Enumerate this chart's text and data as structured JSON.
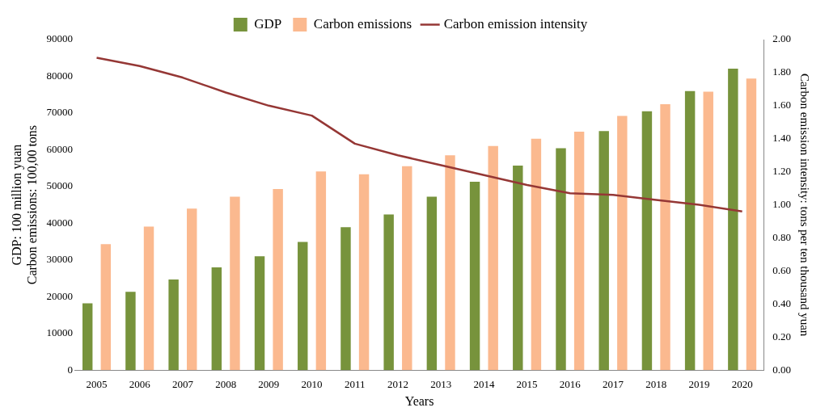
{
  "chart_data": {
    "type": "bar",
    "xlabel": "Years",
    "ylabel": "GDP: 100 million yuan\nCarbon emissions: 100,00 tons",
    "y2label": "Carbon emission intensity: tons per ten thousand yuan",
    "categories": [
      "2005",
      "2006",
      "2007",
      "2008",
      "2009",
      "2010",
      "2011",
      "2012",
      "2013",
      "2014",
      "2015",
      "2016",
      "2017",
      "2018",
      "2019",
      "2020"
    ],
    "series": [
      {
        "name": "GDP",
        "color": "#77933c",
        "values": [
          18200,
          21300,
          24700,
          28000,
          31000,
          34900,
          38900,
          42400,
          47200,
          51300,
          55700,
          60400,
          65100,
          70500,
          76000,
          82100
        ]
      },
      {
        "name": "Carbon emissions",
        "color": "#fbb98f",
        "values": [
          34300,
          39100,
          44000,
          47200,
          49300,
          54100,
          53300,
          55500,
          58500,
          61000,
          63000,
          64900,
          69200,
          72400,
          75800,
          79400
        ]
      },
      {
        "name": "Carbon emission intensity",
        "type": "line",
        "axis": "y2",
        "color": "#953735",
        "values": [
          1.89,
          1.84,
          1.77,
          1.68,
          1.6,
          1.54,
          1.37,
          1.3,
          1.24,
          1.18,
          1.12,
          1.07,
          1.06,
          1.03,
          1.0,
          0.96
        ]
      }
    ],
    "ylim": [
      0,
      90000
    ],
    "yticks": [
      0,
      10000,
      20000,
      30000,
      40000,
      50000,
      60000,
      70000,
      80000,
      90000
    ],
    "y2lim": [
      0,
      2
    ],
    "y2ticks": [
      {
        "value": 0,
        "label": "0.00"
      },
      {
        "value": 0.2,
        "label": "0.20"
      },
      {
        "value": 0.4,
        "label": "0.40"
      },
      {
        "value": 0.6,
        "label": "0.60"
      },
      {
        "value": 0.8,
        "label": "0.80"
      },
      {
        "value": 1,
        "label": "1.00"
      },
      {
        "value": 1.2,
        "label": "1.20"
      },
      {
        "value": 1.4,
        "label": "1.40"
      },
      {
        "value": 1.6,
        "label": "1.60"
      },
      {
        "value": 1.8,
        "label": "1.80"
      },
      {
        "value": 2,
        "label": "2.00"
      }
    ],
    "grid": false,
    "legend": "top",
    "marker": "none",
    "line_style": "solid"
  }
}
